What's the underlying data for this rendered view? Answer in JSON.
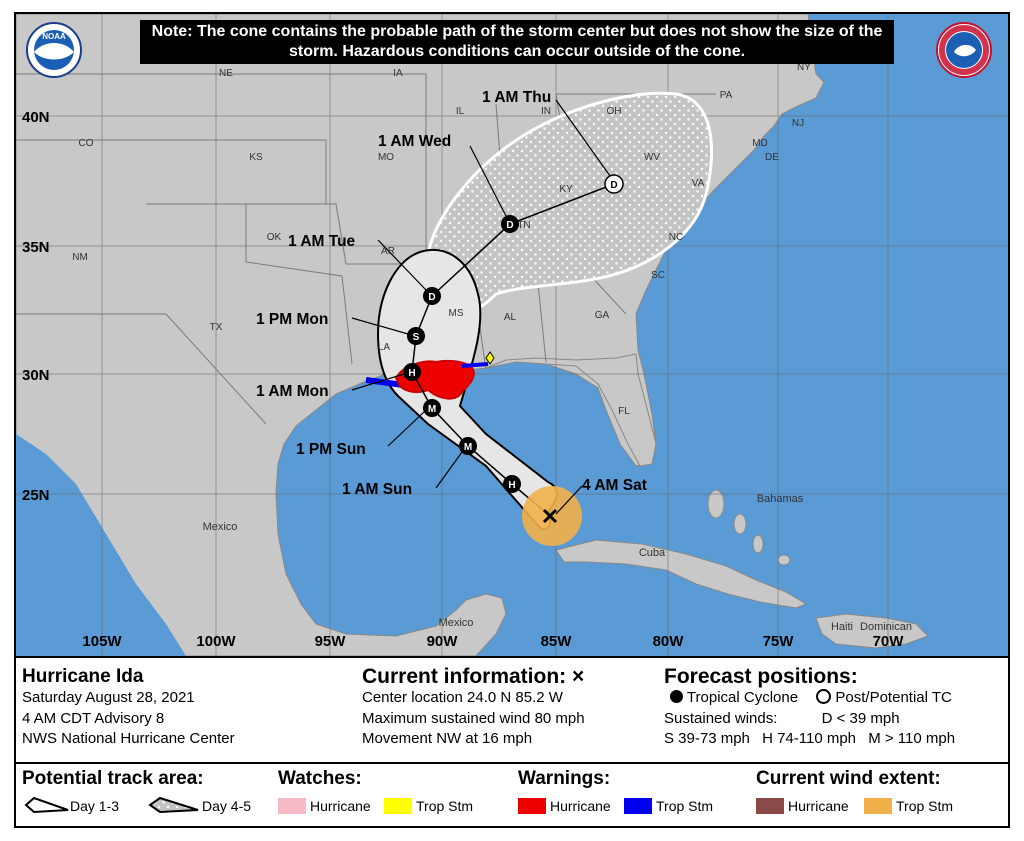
{
  "note": "Note: The cone contains the probable path of the storm center but does not show the size of the storm. Hazardous conditions can occur outside of the cone.",
  "logos": {
    "noaa": "NOAA",
    "nws": "NATIONAL WEATHER SERVICE"
  },
  "map": {
    "lat_labels": [
      "40N",
      "35N",
      "30N",
      "25N"
    ],
    "lon_labels": [
      "105W",
      "100W",
      "95W",
      "90W",
      "85W",
      "80W",
      "75W",
      "70W"
    ],
    "state_labels": [
      "NE",
      "IA",
      "IL",
      "IN",
      "OH",
      "PA",
      "NY",
      "CO",
      "KS",
      "MO",
      "WV",
      "MD",
      "DE",
      "NJ",
      "KY",
      "VA",
      "OK",
      "TN",
      "NC",
      "NM",
      "AR",
      "SC",
      "MS",
      "AL",
      "GA",
      "TX",
      "LA",
      "FL"
    ],
    "place_labels": [
      "Mexico",
      "Mexico",
      "Cuba",
      "Bahamas",
      "Haiti",
      "Dominican"
    ],
    "track_labels": [
      "1 AM Thu",
      "1 AM Wed",
      "1 AM Tue",
      "1 PM Mon",
      "1 AM Mon",
      "1 PM Sun",
      "1 AM Sun",
      "4 AM Sat"
    ],
    "track_points": [
      {
        "time": "1 AM Thu",
        "lat": 36.8,
        "lon": 83.5,
        "symbol": "D"
      },
      {
        "time": "1 AM Wed",
        "lat": 35.0,
        "lon": 87.2,
        "symbol": "D"
      },
      {
        "time": "1 AM Tue",
        "lat": 33.0,
        "lon": 89.9,
        "symbol": "D"
      },
      {
        "time": "1 PM Mon",
        "lat": 31.6,
        "lon": 90.7,
        "symbol": "S"
      },
      {
        "time": "1 AM Mon",
        "lat": 30.0,
        "lon": 90.6,
        "symbol": "H"
      },
      {
        "time": "1 PM Sun",
        "lat": 28.6,
        "lon": 90.0,
        "symbol": "M"
      },
      {
        "time": "1 AM Sun",
        "lat": 27.0,
        "lon": 88.4,
        "symbol": "M"
      },
      {
        "time": "",
        "lat": 25.6,
        "lon": 86.8,
        "symbol": "H"
      },
      {
        "time": "4 AM Sat",
        "lat": 24.0,
        "lon": 85.2,
        "symbol": "x"
      }
    ]
  },
  "storm": {
    "name": "Hurricane Ida",
    "date": "Saturday August 28, 2021",
    "advisory": "4 AM CDT Advisory 8",
    "center": "NWS National Hurricane Center"
  },
  "current": {
    "title": "Current information: ×",
    "location": "Center location 24.0 N 85.2 W",
    "wind": "Maximum sustained wind 80 mph",
    "movement": "Movement NW at 16 mph"
  },
  "forecast": {
    "title": "Forecast positions:",
    "tropical": "Tropical Cyclone",
    "post": "Post/Potential TC",
    "winds_label": "Sustained winds:",
    "d": "D < 39 mph",
    "s": "S 39-73 mph",
    "h": "H 74-110 mph",
    "m": "M > 110 mph"
  },
  "legend": {
    "track_title": "Potential track area:",
    "day13": "Day 1-3",
    "day45": "Day 4-5",
    "watches_title": "Watches:",
    "watch_hurricane": "Hurricane",
    "watch_tropstm": "Trop Stm",
    "warnings_title": "Warnings:",
    "warn_hurricane": "Hurricane",
    "warn_tropstm": "Trop Stm",
    "wind_title": "Current wind extent:",
    "wind_hurricane": "Hurricane",
    "wind_tropstm": "Trop Stm"
  },
  "colors": {
    "water": "#5b9bd5",
    "land": "#c8c8c8",
    "cone": "#e6e6e6",
    "watch_hurricane": "#f6b9c6",
    "watch_tropstm": "#ffff00",
    "warn_hurricane": "#ee0000",
    "warn_tropstm": "#0000ee",
    "wind_hurricane": "#8b4a4a",
    "wind_tropstm": "#f2b04a"
  }
}
